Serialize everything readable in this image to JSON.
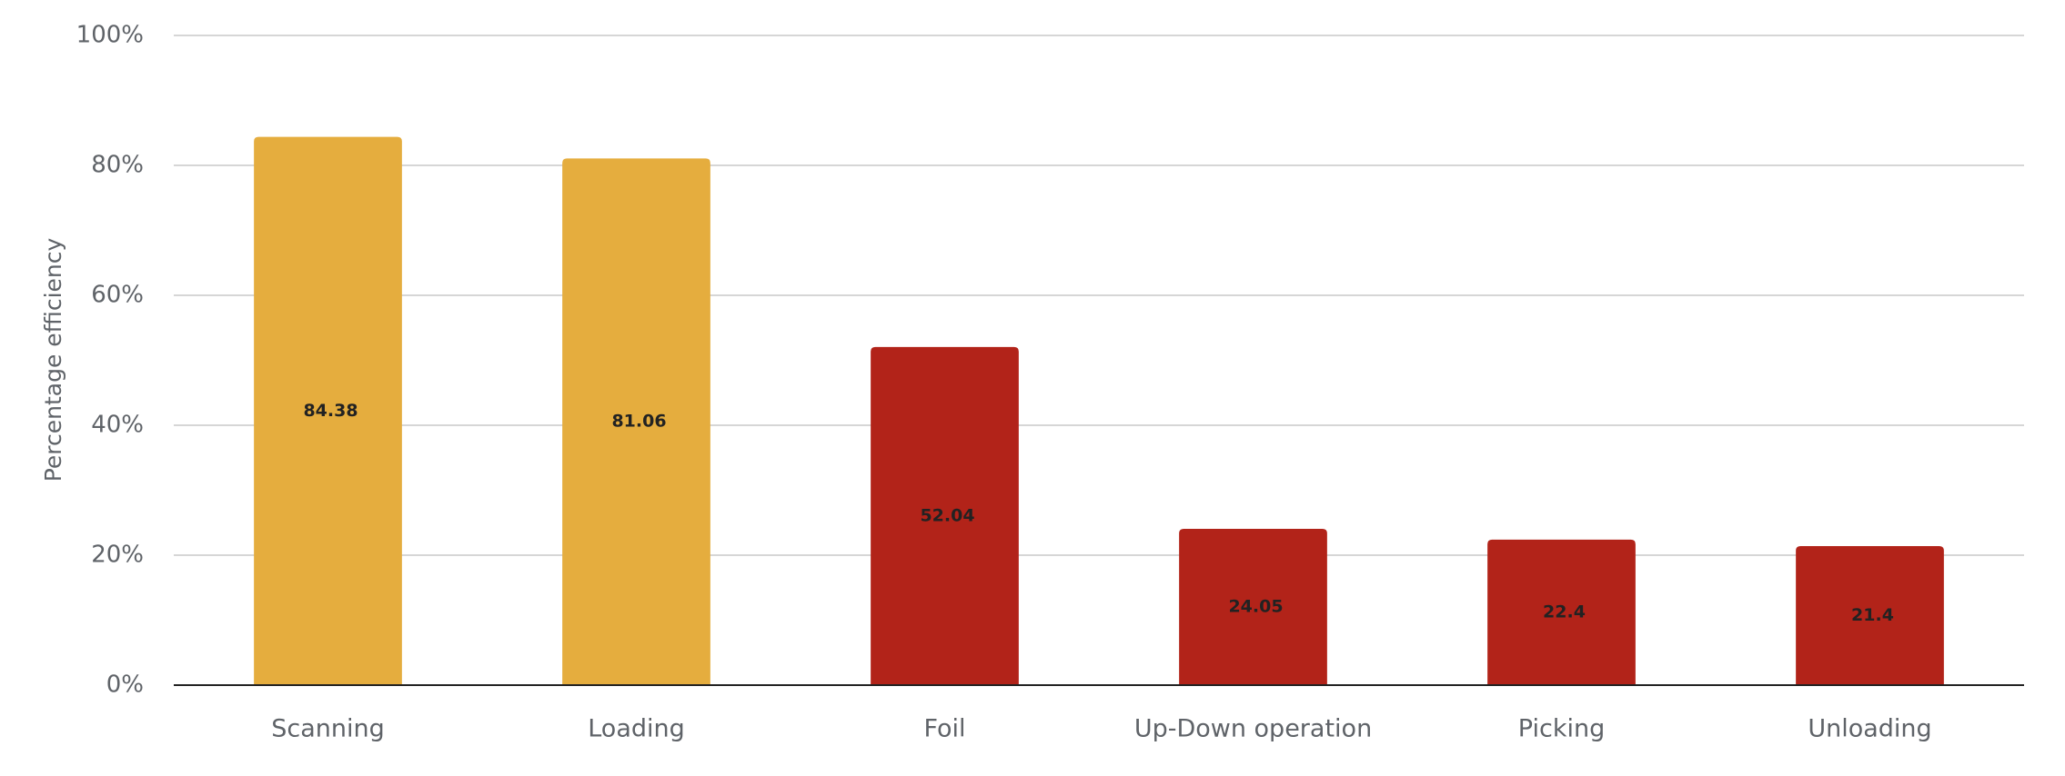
{
  "chart_data": {
    "type": "bar",
    "y_label": "Percentage efficiency",
    "categories": [
      "Scanning",
      "Loading",
      "Foil",
      "Up-Down operation",
      "Picking",
      "Unloading"
    ],
    "values": [
      84.38,
      81.06,
      52.04,
      24.05,
      22.4,
      21.4
    ],
    "colors": [
      "#e5ad3e",
      "#e5ad3e",
      "#b22319",
      "#b22319",
      "#b22319",
      "#b22319"
    ],
    "ylim": [
      0,
      100
    ],
    "yticks": [
      {
        "value": 0,
        "label": "0%"
      },
      {
        "value": 20,
        "label": "20%"
      },
      {
        "value": 40,
        "label": "40%"
      },
      {
        "value": 60,
        "label": "60%"
      },
      {
        "value": 80,
        "label": "80%"
      },
      {
        "value": 100,
        "label": "100%"
      }
    ],
    "grid": true
  }
}
